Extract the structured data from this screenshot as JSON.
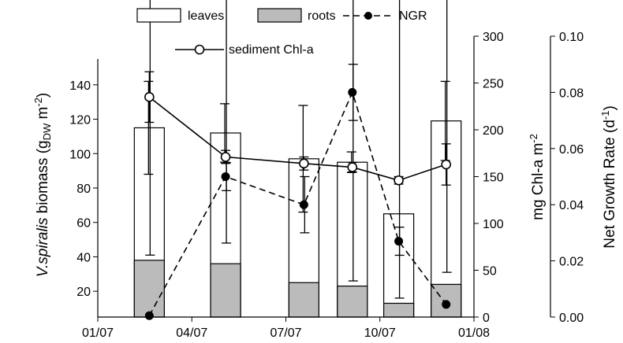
{
  "chart_data": {
    "type": "bar",
    "x_ticks": [
      "01/07",
      "04/07",
      "07/07",
      "10/07",
      "01/08"
    ],
    "periods": [
      {
        "date": "2007-02-20",
        "leaves_total": 115,
        "leaves_err": 27,
        "roots": 38,
        "roots_err": 3,
        "chl_a": 235,
        "chl_a_err": 27,
        "ngr": 0.0005
      },
      {
        "date": "2007-05-05",
        "leaves_total": 112,
        "leaves_err": 17,
        "roots": 36,
        "roots_err": 12,
        "chl_a": 171,
        "chl_a_err": 7,
        "ngr": 0.05
      },
      {
        "date": "2007-07-20",
        "leaves_total": 97,
        "leaves_err": 31,
        "roots": 25,
        "roots_err": 0,
        "chl_a": 164,
        "chl_a_err": 7,
        "ngr": 0.04
      },
      {
        "date": "2007-09-05",
        "leaves_total": 95,
        "leaves_err": 6,
        "roots": 23,
        "roots_err": 3,
        "chl_a": 160,
        "chl_a_err": 5,
        "ngr": 0.08
      },
      {
        "date": "2007-10-20",
        "leaves_total": 65,
        "leaves_err": 0,
        "roots": 13,
        "roots_err": 3,
        "chl_a": 146,
        "chl_a_err": 4,
        "ngr": 0.027
      },
      {
        "date": "2007-12-05",
        "leaves_total": 119,
        "leaves_err": 23,
        "roots": 24,
        "roots_err": 7,
        "chl_a": 163,
        "chl_a_err": 22,
        "ngr": 0.0045
      }
    ],
    "ngr_err": [
      0.0,
      0.005,
      0.01,
      0.01,
      0.005,
      0.0
    ],
    "legend": {
      "leaves": "leaves",
      "roots": "roots",
      "ngr": "NGR",
      "chl": "sediment Chl-a"
    },
    "y_left": {
      "label_italic": "V.spiralis",
      "label_pre": " biomass (g",
      "label_sub": "DW",
      "label_mid": " m",
      "label_sup": "-2",
      "label_post": ")",
      "ticks": [
        "20",
        "40",
        "60",
        "80",
        "100",
        "120",
        "140"
      ],
      "ylim": [
        5,
        155
      ]
    },
    "y_mid": {
      "label_pre": "mg Chl-a m",
      "label_sup": "-2",
      "ticks": [
        "0",
        "50",
        "100",
        "150",
        "200",
        "250",
        "300"
      ],
      "ylim": [
        0,
        300
      ]
    },
    "y_right": {
      "label_pre": "Net Growth Rate (d",
      "label_sup": "-1",
      "label_post": ")",
      "ticks": [
        "0.00",
        "0.02",
        "0.04",
        "0.06",
        "0.08",
        "0.10"
      ],
      "ylim": [
        0,
        0.1
      ]
    },
    "colors": {
      "leaves": "#ffffff",
      "roots": "#bbbbbb",
      "line": "#000000"
    }
  }
}
